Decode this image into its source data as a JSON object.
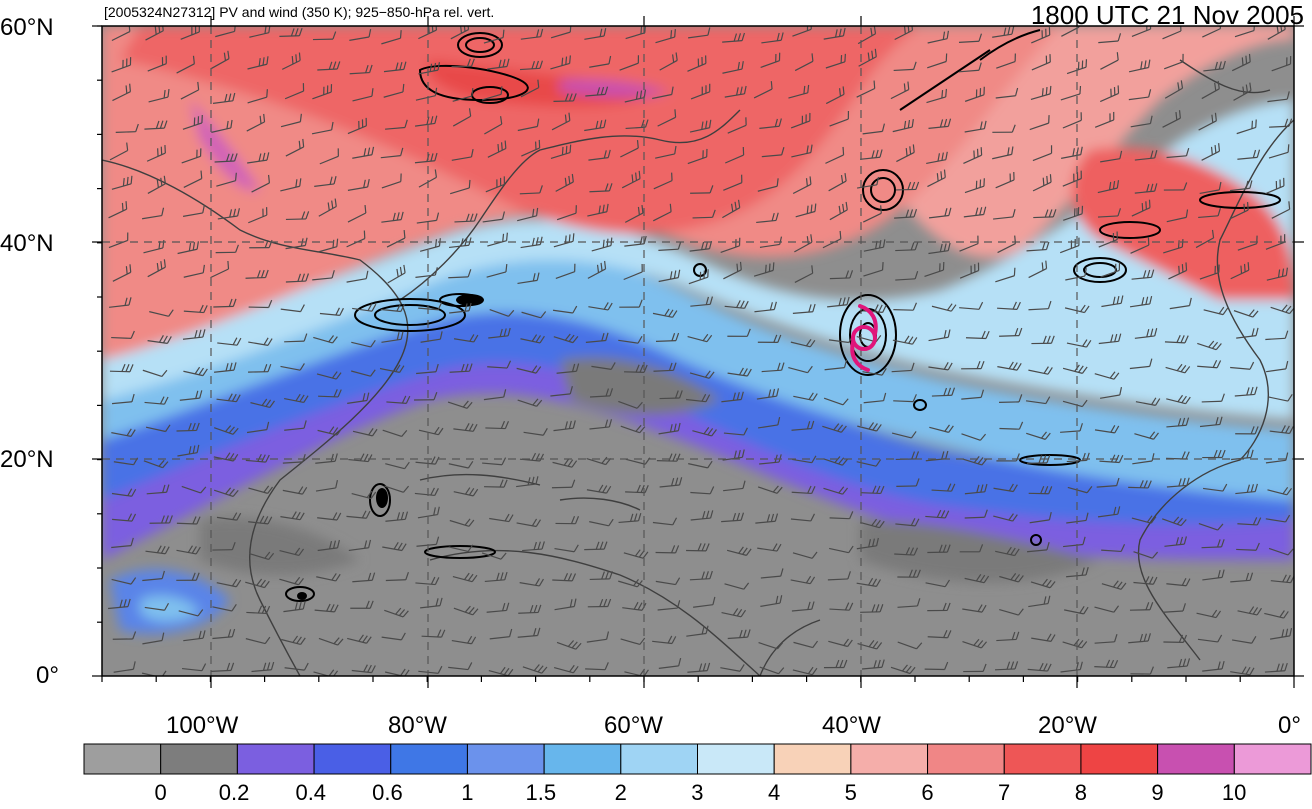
{
  "header": {
    "left_title": "[2005324N27312] PV and wind (350 K); 925−850-hPa rel. vert.",
    "right_title": "1800 UTC 21 Nov 2005"
  },
  "axes": {
    "lat_labels": [
      "60°N",
      "40°N",
      "20°N",
      "0°"
    ],
    "lon_labels": [
      "100°W",
      "80°W",
      "60°W",
      "40°W",
      "20°W",
      "0°"
    ]
  },
  "colorbar": {
    "tick_labels": [
      "0",
      "0.2",
      "0.4",
      "0.6",
      "1",
      "1.5",
      "2",
      "3",
      "4",
      "5",
      "6",
      "7",
      "8",
      "9",
      "10"
    ],
    "colors": [
      "#9e9e9e",
      "#7d7d7d",
      "#7b5fe0",
      "#4a5fe6",
      "#3f77e6",
      "#6b92ec",
      "#67b6ec",
      "#9fd4f4",
      "#c9e8f8",
      "#f8d2b8",
      "#f5aeaa",
      "#f08686",
      "#ee5656",
      "#ee4444",
      "#c850b0",
      "#ec9ad8"
    ]
  },
  "legend_symbol": {
    "name": "tropical-cyclone-icon",
    "color": "#e0157a"
  }
}
